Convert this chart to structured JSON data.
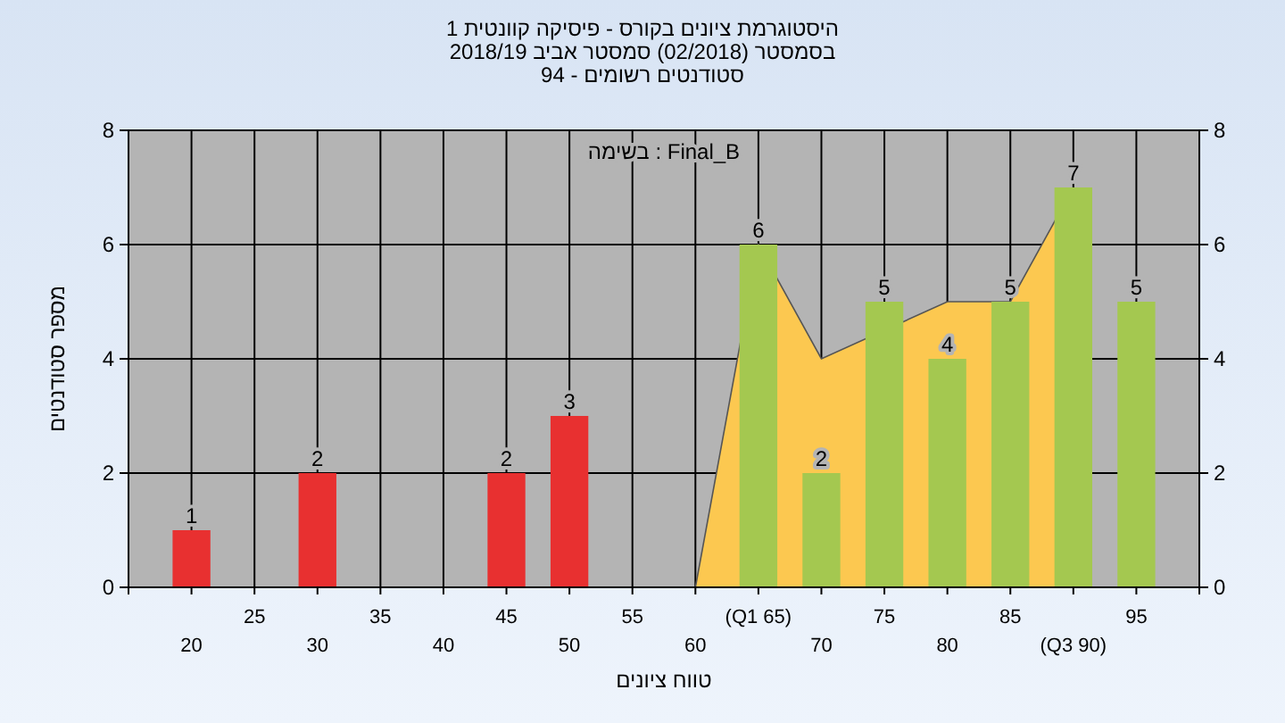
{
  "chart_data": {
    "type": "bar",
    "title": "היסטוגרמת ציונים בקורס - פיסיקה קוונטית 1",
    "subtitle": "בסמסטר  (02/2018)  סמסטר אביב 2018/19\nסטודנטים רשומים - 94",
    "xlabel": "טווח ציונים",
    "ylabel": "מספר סטודנטים",
    "annotations": [
      "בשימה : Final_B"
    ],
    "categories": [
      "20",
      "25",
      "30",
      "35",
      "40",
      "45",
      "50",
      "55",
      "60",
      "(Q1 65)",
      "70",
      "75",
      "80",
      "85",
      "(Q3 90)",
      "95"
    ],
    "series": [
      {
        "type": "area",
        "color": "#fcc850",
        "values": [
          null,
          null,
          null,
          null,
          null,
          null,
          null,
          null,
          0,
          6,
          4,
          null,
          5,
          5,
          7,
          null
        ]
      },
      {
        "values": [
          1,
          0,
          2,
          0,
          0,
          2,
          3,
          0,
          0,
          6,
          2,
          5,
          4,
          5,
          7,
          5
        ],
        "colors": [
          "#e83030",
          null,
          "#e83030",
          null,
          null,
          "#e83030",
          "#e83030",
          null,
          null,
          "#a4c850",
          "#a4c850",
          "#a4c850",
          "#a4c850",
          "#a4c850",
          "#a4c850",
          "#a4c850"
        ],
        "value_labels": [
          "1",
          null,
          "2",
          null,
          null,
          "2",
          "3",
          null,
          null,
          "6",
          "2",
          "5",
          "4",
          "5",
          "7",
          "5"
        ]
      }
    ],
    "ylim": [
      0,
      8
    ],
    "yticks": [
      0,
      2,
      4,
      6,
      8
    ],
    "y2lim": [
      0,
      8
    ],
    "y2ticks": [
      0,
      2,
      4,
      6,
      8
    ],
    "grid": true
  }
}
